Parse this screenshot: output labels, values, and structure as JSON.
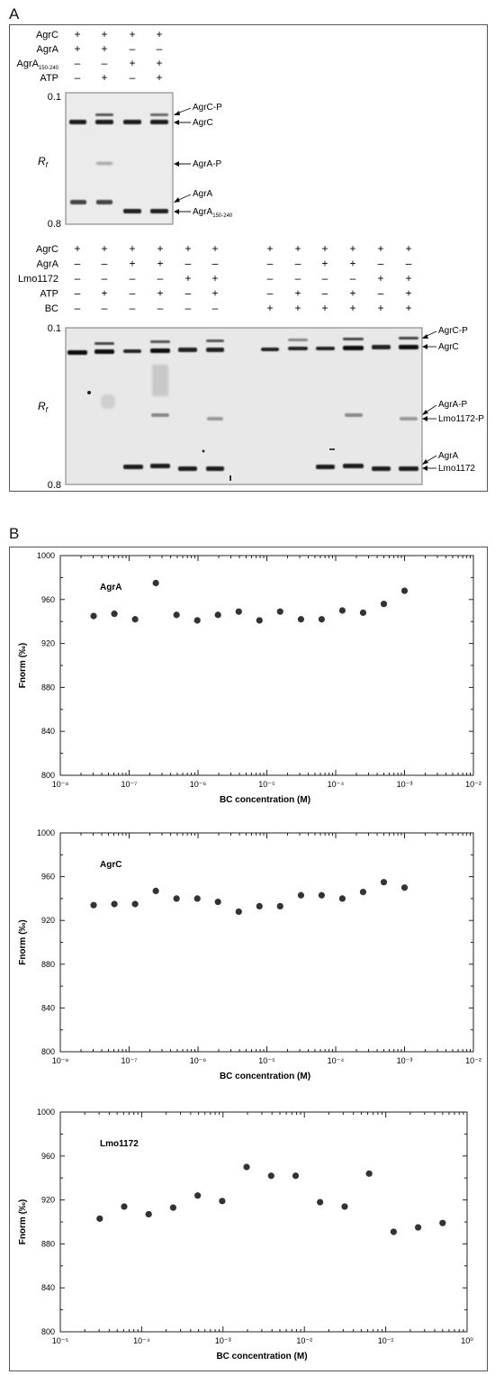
{
  "panel_a": {
    "letter": "A",
    "top_gel": {
      "rows": [
        {
          "label": "AgrC",
          "signs": [
            "+",
            "+",
            "+",
            "+"
          ]
        },
        {
          "label": "AgrA",
          "signs": [
            "+",
            "+",
            "–",
            "–"
          ]
        },
        {
          "label": "AgrA",
          "label_sub": "150-240",
          "signs": [
            "–",
            "–",
            "+",
            "+"
          ]
        },
        {
          "label": "ATP",
          "signs": [
            "–",
            "+",
            "–",
            "+"
          ]
        }
      ],
      "rf_top": "0.1",
      "rf_bottom": "0.8",
      "rf_label": "R",
      "rf_label_sub": "f",
      "bands": [
        {
          "label": "AgrC-P"
        },
        {
          "label": "AgrC"
        },
        {
          "label": "AgrA-P"
        },
        {
          "label": "AgrA"
        },
        {
          "label": "AgrA",
          "sub": "150-240"
        }
      ]
    },
    "bottom_gel": {
      "rows": [
        {
          "label": "AgrC",
          "signs": [
            "+",
            "+",
            "+",
            "+",
            "+",
            "+",
            "",
            "+",
            "+",
            "+",
            "+",
            "+",
            "+"
          ]
        },
        {
          "label": "AgrA",
          "signs": [
            "–",
            "–",
            "+",
            "+",
            "–",
            "–",
            "",
            "–",
            "–",
            "+",
            "+",
            "–",
            "–"
          ]
        },
        {
          "label": "Lmo1172",
          "signs": [
            "–",
            "–",
            "–",
            "–",
            "+",
            "+",
            "",
            "–",
            "–",
            "–",
            "–",
            "+",
            "+"
          ]
        },
        {
          "label": "ATP",
          "signs": [
            "–",
            "+",
            "–",
            "+",
            "–",
            "+",
            "",
            "–",
            "+",
            "–",
            "+",
            "–",
            "+"
          ]
        },
        {
          "label": "BC",
          "signs": [
            "–",
            "–",
            "–",
            "–",
            "–",
            "–",
            "",
            "+",
            "+",
            "+",
            "+",
            "+",
            "+"
          ]
        }
      ],
      "rf_top": "0.1",
      "rf_bottom": "0.8",
      "rf_label": "R",
      "rf_label_sub": "f",
      "bands": [
        {
          "label": "AgrC-P"
        },
        {
          "label": "AgrC"
        },
        {
          "label": "AgrA-P"
        },
        {
          "label": "Lmo1172-P"
        },
        {
          "label": "AgrA"
        },
        {
          "label": "Lmo1172"
        }
      ]
    }
  },
  "panel_b": {
    "letter": "B"
  },
  "chart_data": [
    {
      "type": "scatter",
      "title": "AgrA",
      "xlabel": "BC concentration (M)",
      "ylabel": "Fnorm (‰)",
      "xscale": "log",
      "xlim": [
        1e-08,
        0.01
      ],
      "ylim": [
        800,
        1000
      ],
      "xticks": [
        "10⁻⁸",
        "10⁻⁷",
        "10⁻⁶",
        "10⁻⁵",
        "10⁻⁴",
        "10⁻³",
        "10⁻²"
      ],
      "yticks": [
        "800",
        "840",
        "880",
        "920",
        "960",
        "1000"
      ],
      "x": [
        3.05e-08,
        6.1e-08,
        1.22e-07,
        2.44e-07,
        4.88e-07,
        9.77e-07,
        1.95e-06,
        3.91e-06,
        7.81e-06,
        1.56e-05,
        3.13e-05,
        6.25e-05,
        0.000125,
        0.00025,
        0.0005,
        0.001
      ],
      "y": [
        945,
        947,
        942,
        975,
        946,
        941,
        946,
        949,
        941,
        949,
        942,
        942,
        950,
        948,
        956,
        968
      ]
    },
    {
      "type": "scatter",
      "title": "AgrC",
      "xlabel": "BC concentration (M)",
      "ylabel": "Fnorm (‰)",
      "xscale": "log",
      "xlim": [
        1e-08,
        0.01
      ],
      "ylim": [
        800,
        1000
      ],
      "xticks": [
        "10⁻⁸",
        "10⁻⁷",
        "10⁻⁶",
        "10⁻⁵",
        "10⁻⁴",
        "10⁻³",
        "10⁻²"
      ],
      "yticks": [
        "800",
        "840",
        "880",
        "920",
        "960",
        "1000"
      ],
      "x": [
        3.05e-08,
        6.1e-08,
        1.22e-07,
        2.44e-07,
        4.88e-07,
        9.77e-07,
        1.95e-06,
        3.91e-06,
        7.81e-06,
        1.56e-05,
        3.13e-05,
        6.25e-05,
        0.000125,
        0.00025,
        0.0005,
        0.001
      ],
      "y": [
        934,
        935,
        935,
        947,
        940,
        940,
        937,
        928,
        933,
        933,
        943,
        943,
        940,
        946,
        955,
        950
      ]
    },
    {
      "type": "scatter",
      "title": "Lmo1172",
      "xlabel": "BC concentration (M)",
      "ylabel": "Fnorm (‰)",
      "xscale": "log",
      "xlim": [
        1e-05,
        1
      ],
      "ylim": [
        800,
        1000
      ],
      "xticks": [
        "10⁻⁵",
        "10⁻⁴",
        "10⁻³",
        "10⁻²",
        "10⁻¹",
        "10⁰"
      ],
      "yticks": [
        "800",
        "840",
        "880",
        "920",
        "960",
        "1000"
      ],
      "x": [
        3.05e-05,
        6.1e-05,
        0.000122,
        0.000244,
        0.000488,
        0.000977,
        0.00195,
        0.00391,
        0.00781,
        0.0156,
        0.0313,
        0.0625,
        0.125,
        0.25,
        0.5
      ],
      "y": [
        903,
        914,
        907,
        913,
        924,
        919,
        950,
        942,
        942,
        918,
        914,
        944,
        891,
        895,
        899
      ]
    }
  ]
}
